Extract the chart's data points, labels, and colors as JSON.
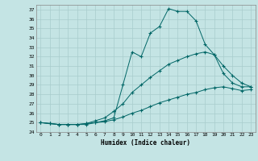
{
  "xlabel": "Humidex (Indice chaleur)",
  "background_color": "#c4e4e4",
  "line_color": "#006666",
  "grid_color": "#a8cccc",
  "xlim_min": -0.5,
  "xlim_max": 23.5,
  "ylim_min": 24,
  "ylim_max": 37.5,
  "yticks": [
    24,
    25,
    26,
    27,
    28,
    29,
    30,
    31,
    32,
    33,
    34,
    35,
    36,
    37
  ],
  "xticks": [
    0,
    1,
    2,
    3,
    4,
    5,
    6,
    7,
    8,
    9,
    10,
    11,
    12,
    13,
    14,
    15,
    16,
    17,
    18,
    19,
    20,
    21,
    22,
    23
  ],
  "line1_x": [
    0,
    1,
    2,
    3,
    4,
    5,
    6,
    7,
    8,
    9,
    10,
    11,
    12,
    13,
    14,
    15,
    16,
    17,
    18,
    19,
    20,
    21,
    22,
    23
  ],
  "line1_y": [
    25.0,
    24.9,
    24.8,
    24.8,
    24.8,
    24.8,
    25.0,
    25.2,
    25.5,
    29.0,
    32.5,
    32.0,
    34.5,
    35.2,
    37.1,
    36.8,
    36.8,
    35.8,
    33.3,
    32.2,
    30.2,
    29.2,
    28.8,
    28.8
  ],
  "line2_x": [
    0,
    1,
    2,
    3,
    4,
    5,
    6,
    7,
    8,
    9,
    10,
    11,
    12,
    13,
    14,
    15,
    16,
    17,
    18,
    19,
    20,
    21,
    22,
    23
  ],
  "line2_y": [
    25.0,
    24.9,
    24.8,
    24.8,
    24.8,
    24.9,
    25.2,
    25.5,
    26.2,
    27.0,
    28.2,
    29.0,
    29.8,
    30.5,
    31.2,
    31.6,
    32.0,
    32.3,
    32.5,
    32.2,
    31.0,
    30.0,
    29.2,
    28.8
  ],
  "line3_x": [
    0,
    1,
    2,
    3,
    4,
    5,
    6,
    7,
    8,
    9,
    10,
    11,
    12,
    13,
    14,
    15,
    16,
    17,
    18,
    19,
    20,
    21,
    22,
    23
  ],
  "line3_y": [
    25.0,
    24.9,
    24.8,
    24.8,
    24.8,
    24.9,
    25.0,
    25.1,
    25.3,
    25.6,
    26.0,
    26.3,
    26.7,
    27.1,
    27.4,
    27.7,
    28.0,
    28.2,
    28.5,
    28.7,
    28.8,
    28.6,
    28.4,
    28.5
  ]
}
